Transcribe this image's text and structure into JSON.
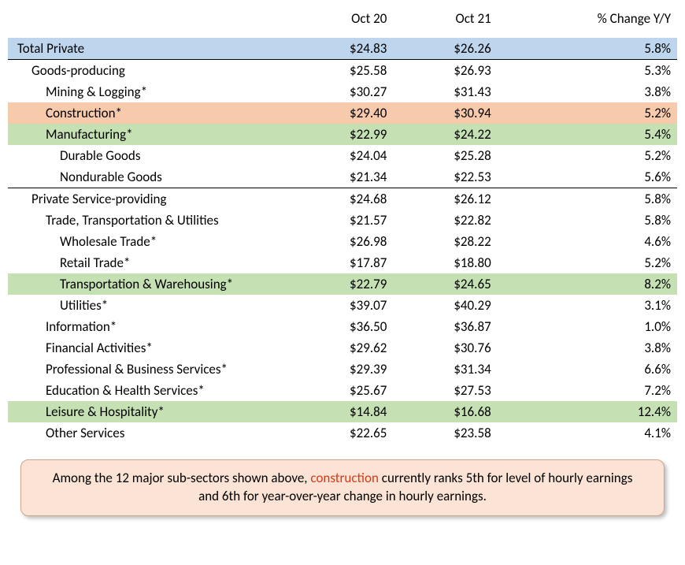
{
  "columns": {
    "label": "",
    "c1": "Oct 20",
    "c2": "Oct 21",
    "c3": "% Change Y/Y"
  },
  "rows": [
    {
      "label": "Total Private",
      "c1": "$24.83",
      "c2": "$26.26",
      "c3": "5.8%",
      "indent": 0,
      "highlight": "blue",
      "border": "bottom"
    },
    {
      "label": "Goods-producing",
      "c1": "$25.58",
      "c2": "$26.93",
      "c3": "5.3%",
      "indent": 1
    },
    {
      "label": "Mining & Logging*",
      "c1": "$30.27",
      "c2": "$31.43",
      "c3": "3.8%",
      "indent": 2
    },
    {
      "label": "Construction*",
      "c1": "$29.40",
      "c2": "$30.94",
      "c3": "5.2%",
      "indent": 2,
      "highlight": "orange"
    },
    {
      "label": "Manufacturing*",
      "c1": "$22.99",
      "c2": "$24.22",
      "c3": "5.4%",
      "indent": 2,
      "highlight": "green"
    },
    {
      "label": "Durable Goods",
      "c1": "$24.04",
      "c2": "$25.28",
      "c3": "5.2%",
      "indent": 3
    },
    {
      "label": "Nondurable Goods",
      "c1": "$21.34",
      "c2": "$22.53",
      "c3": "5.6%",
      "indent": 3,
      "border": "bottom"
    },
    {
      "label": "Private Service-providing",
      "c1": "$24.68",
      "c2": "$26.12",
      "c3": "5.8%",
      "indent": 1
    },
    {
      "label": "Trade, Transportation & Utilities",
      "c1": "$21.57",
      "c2": "$22.82",
      "c3": "5.8%",
      "indent": 2
    },
    {
      "label": "Wholesale Trade*",
      "c1": "$26.98",
      "c2": "$28.22",
      "c3": "4.6%",
      "indent": 3
    },
    {
      "label": "Retail Trade*",
      "c1": "$17.87",
      "c2": "$18.80",
      "c3": "5.2%",
      "indent": 3
    },
    {
      "label": "Transportation & Warehousing*",
      "c1": "$22.79",
      "c2": "$24.65",
      "c3": "8.2%",
      "indent": 3,
      "highlight": "green"
    },
    {
      "label": "Utilities*",
      "c1": "$39.07",
      "c2": "$40.29",
      "c3": "3.1%",
      "indent": 3
    },
    {
      "label": "Information*",
      "c1": "$36.50",
      "c2": "$36.87",
      "c3": "1.0%",
      "indent": 2
    },
    {
      "label": "Financial Activities*",
      "c1": "$29.62",
      "c2": "$30.76",
      "c3": "3.8%",
      "indent": 2
    },
    {
      "label": "Professional & Business Services*",
      "c1": "$29.39",
      "c2": "$31.34",
      "c3": "6.6%",
      "indent": 2
    },
    {
      "label": "Education & Health Services*",
      "c1": "$25.67",
      "c2": "$27.53",
      "c3": "7.2%",
      "indent": 2
    },
    {
      "label": "Leisure & Hospitality*",
      "c1": "$14.84",
      "c2": "$16.68",
      "c3": "12.4%",
      "indent": 2,
      "highlight": "green"
    },
    {
      "label": "Other Services",
      "c1": "$22.65",
      "c2": "$23.58",
      "c3": "4.1%",
      "indent": 2
    }
  ],
  "note": {
    "pre": "Among the 12 major sub-sectors shown above, ",
    "em": "construction",
    "post": " currently ranks 5th for level of hourly earnings and 6th for year-over-year change in hourly earnings."
  },
  "colors": {
    "blue": "#bdd6ee",
    "orange": "#f7caac",
    "green": "#c5e0b3",
    "note_bg": "#fbe4d5",
    "note_border": "#d0a488",
    "em_text": "#d63a1a"
  },
  "font": {
    "family": "Calibri",
    "size_pt": 13
  }
}
